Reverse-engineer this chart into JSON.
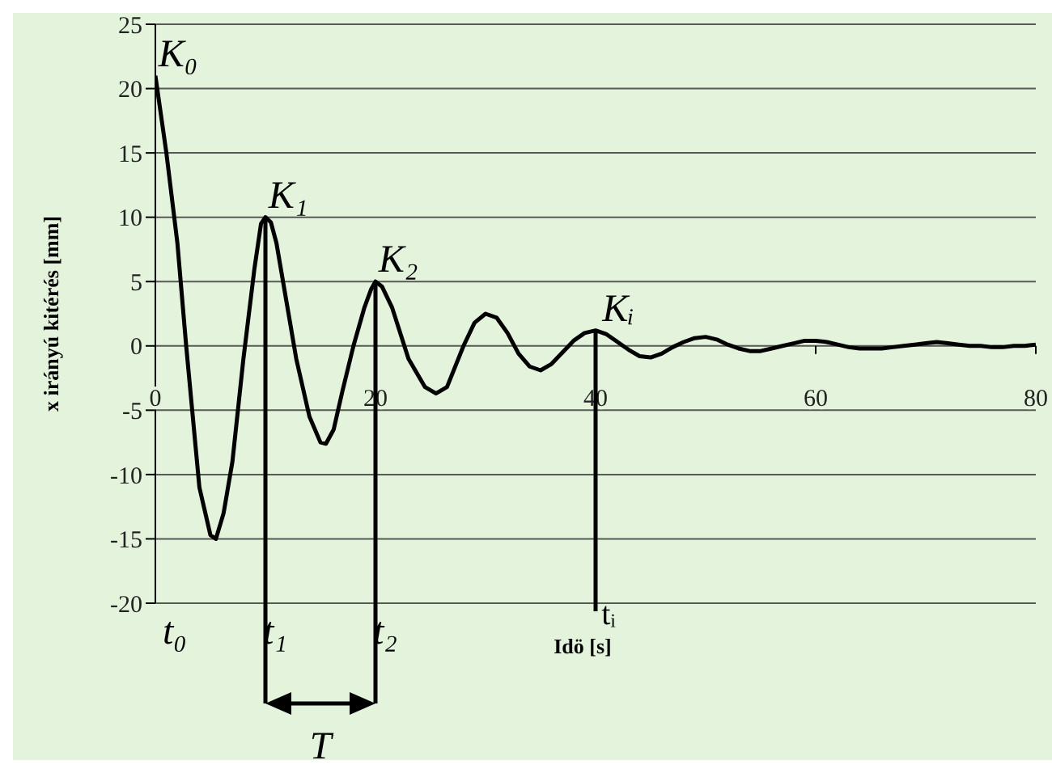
{
  "chart_data": {
    "type": "line",
    "xlabel": "Idö [s]",
    "ylabel": "x irányú kitérés [mm]",
    "x": [
      0,
      1,
      2,
      2.8,
      4,
      5,
      5.5,
      6.2,
      7,
      8,
      9,
      9.6,
      10,
      10.5,
      11,
      12,
      12.8,
      14,
      15,
      15.5,
      16.2,
      17,
      18,
      19,
      19.6,
      20,
      20.6,
      21.5,
      23,
      24.5,
      25.5,
      26.5,
      28,
      29,
      30,
      31,
      32,
      33,
      34,
      35,
      36,
      37,
      38,
      39,
      40,
      41,
      42,
      43,
      44,
      45,
      46,
      47,
      48,
      49,
      50,
      51,
      52,
      53,
      54,
      55,
      56,
      57,
      58,
      59,
      60,
      61,
      62,
      63,
      64,
      65,
      66,
      67,
      68,
      69,
      70,
      71,
      72,
      73,
      74,
      75,
      76,
      77,
      78,
      79,
      80
    ],
    "series": [
      {
        "color": "#000000",
        "values": [
          21,
          15,
          8,
          0,
          -11,
          -14.7,
          -15,
          -13,
          -9,
          -1,
          6,
          9.5,
          10,
          9.6,
          8,
          3,
          -1,
          -5.5,
          -7.5,
          -7.6,
          -6.5,
          -3.5,
          0,
          3,
          4.4,
          5,
          4.6,
          3,
          -1,
          -3.2,
          -3.7,
          -3.2,
          0,
          1.8,
          2.5,
          2.2,
          1,
          -0.6,
          -1.6,
          -1.9,
          -1.4,
          -0.5,
          0.4,
          1,
          1.2,
          0.9,
          0.3,
          -0.3,
          -0.8,
          -0.9,
          -0.6,
          -0.1,
          0.3,
          0.6,
          0.7,
          0.5,
          0.1,
          -0.2,
          -0.4,
          -0.4,
          -0.2,
          0,
          0.2,
          0.4,
          0.4,
          0.3,
          0.1,
          -0.1,
          -0.2,
          -0.2,
          -0.2,
          -0.1,
          0,
          0.1,
          0.2,
          0.3,
          0.2,
          0.1,
          0,
          0,
          -0.1,
          -0.1,
          0,
          0,
          0.1
        ]
      }
    ],
    "xlim": [
      0,
      80
    ],
    "xticks": [
      0,
      20,
      40,
      60,
      80
    ],
    "ylim": [
      -20,
      25
    ],
    "yticks": [
      -20,
      -15,
      -10,
      -5,
      0,
      5,
      10,
      15,
      20,
      25
    ],
    "grid": "y",
    "marker": "none",
    "line_style": "solid",
    "ref_lines": [
      {
        "axis": "x",
        "value": 10,
        "label": "t₁"
      },
      {
        "axis": "x",
        "value": 20,
        "label": "t₂"
      },
      {
        "axis": "x",
        "value": 40,
        "label": "tᵢ"
      }
    ],
    "annotations": [
      {
        "text": "K₀",
        "x": 0,
        "y": 21
      },
      {
        "text": "K₁",
        "x": 10,
        "y": 10
      },
      {
        "text": "K₂",
        "x": 20,
        "y": 5
      },
      {
        "text": "Kᵢ",
        "x": 40,
        "y": 1.2
      },
      "t₀",
      "T"
    ]
  }
}
